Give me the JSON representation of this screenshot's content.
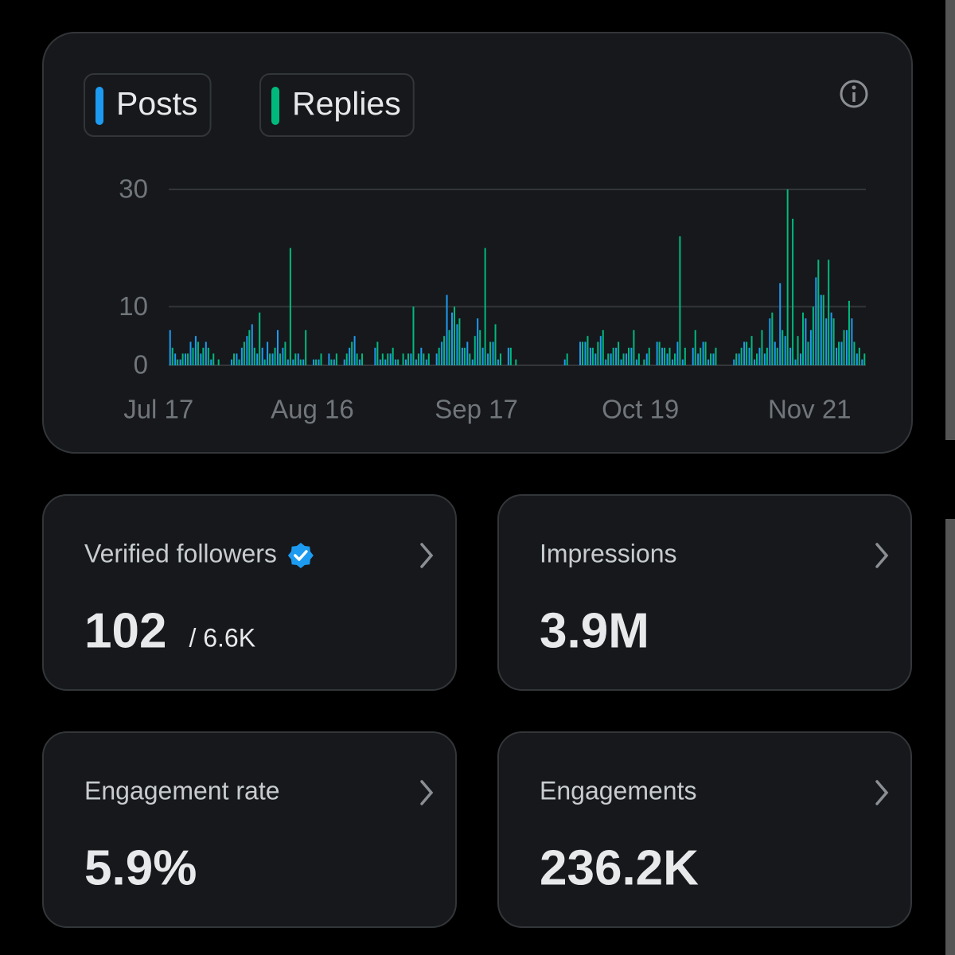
{
  "chart_data": {
    "type": "bar",
    "categories": [
      "Jul 17",
      null,
      null,
      null,
      null,
      null,
      null,
      null,
      null,
      null,
      null,
      null,
      null,
      null,
      null,
      null,
      null,
      null,
      null,
      null,
      null,
      null,
      null,
      null,
      null,
      null,
      null,
      null,
      null,
      null,
      "Aug 16",
      null,
      null,
      null,
      null,
      null,
      null,
      null,
      null,
      null,
      null,
      null,
      null,
      null,
      null,
      null,
      null,
      null,
      null,
      null,
      null,
      null,
      null,
      null,
      null,
      null,
      null,
      null,
      null,
      null,
      null,
      null,
      "Sep 17",
      null,
      null,
      null,
      null,
      null,
      null,
      null,
      null,
      null,
      null,
      null,
      null,
      null,
      null,
      null,
      null,
      null,
      null,
      null,
      null,
      null,
      null,
      null,
      null,
      null,
      null,
      null,
      null,
      null,
      null,
      null,
      "Oct 19",
      null,
      null,
      null,
      null,
      null,
      null,
      null,
      null,
      null,
      null,
      null,
      null,
      null,
      null,
      null,
      null,
      null,
      null,
      null,
      null,
      null,
      null,
      null,
      null,
      null,
      null,
      null,
      null,
      null,
      null,
      null,
      null,
      "Nov 21",
      null,
      null,
      null,
      null,
      null,
      null,
      null,
      null
    ],
    "series": [
      {
        "name": "Posts",
        "color": "#1d9bf0",
        "values": [
          6,
          2,
          1,
          2,
          4,
          5,
          2,
          4,
          1,
          0,
          0,
          0,
          1,
          2,
          3,
          5,
          7,
          2,
          3,
          4,
          2,
          6,
          3,
          1,
          1,
          2,
          1,
          0,
          1,
          1,
          0,
          2,
          1,
          0,
          1,
          3,
          5,
          1,
          0,
          0,
          3,
          1,
          1,
          2,
          1,
          0,
          1,
          2,
          1,
          3,
          1,
          0,
          2,
          4,
          12,
          9,
          7,
          3,
          4,
          1,
          8,
          3,
          2,
          4,
          1,
          0,
          3,
          0,
          0,
          0,
          0,
          0,
          0,
          0,
          0,
          0,
          0,
          1,
          0,
          0,
          4,
          4,
          3,
          2,
          5,
          1,
          2,
          3,
          1,
          2,
          3,
          1,
          0,
          2,
          0,
          4,
          3,
          2,
          1,
          4,
          1,
          0,
          3,
          2,
          4,
          1,
          2,
          0,
          0,
          0,
          1,
          2,
          4,
          3,
          1,
          3,
          2,
          8,
          4,
          14,
          5,
          3,
          1,
          2,
          8,
          6,
          15,
          12,
          8,
          9,
          3,
          4,
          6,
          8,
          2,
          1
        ]
      },
      {
        "name": "Replies",
        "color": "#00ba7c",
        "values": [
          3,
          1,
          2,
          2,
          3,
          4,
          3,
          3,
          2,
          1,
          0,
          0,
          2,
          1,
          4,
          6,
          3,
          9,
          1,
          2,
          3,
          2,
          4,
          20,
          2,
          1,
          6,
          0,
          1,
          2,
          0,
          1,
          2,
          0,
          2,
          4,
          2,
          2,
          0,
          0,
          4,
          2,
          2,
          3,
          1,
          2,
          2,
          10,
          2,
          2,
          2,
          0,
          3,
          5,
          6,
          10,
          8,
          3,
          2,
          5,
          6,
          20,
          4,
          7,
          2,
          0,
          3,
          1,
          0,
          0,
          0,
          0,
          0,
          0,
          0,
          0,
          0,
          2,
          0,
          0,
          4,
          5,
          3,
          4,
          6,
          2,
          3,
          4,
          2,
          3,
          6,
          2,
          1,
          3,
          0,
          4,
          3,
          3,
          2,
          22,
          3,
          0,
          6,
          3,
          4,
          2,
          3,
          0,
          0,
          0,
          2,
          3,
          4,
          5,
          2,
          6,
          3,
          9,
          3,
          6,
          30,
          25,
          5,
          9,
          4,
          10,
          18,
          12,
          18,
          8,
          4,
          6,
          11,
          4,
          3,
          2
        ]
      }
    ],
    "ylim": [
      0,
      30
    ],
    "yticks": [
      0,
      10,
      30
    ],
    "grid": true
  },
  "cards": [
    {
      "title": "Verified followers",
      "value": "102",
      "total": "/ 6.6K"
    },
    {
      "title": "Impressions",
      "value": "3.9M"
    },
    {
      "title": "Engagement rate",
      "value": "5.9%"
    },
    {
      "title": "Engagements",
      "value": "236.2K"
    }
  ]
}
